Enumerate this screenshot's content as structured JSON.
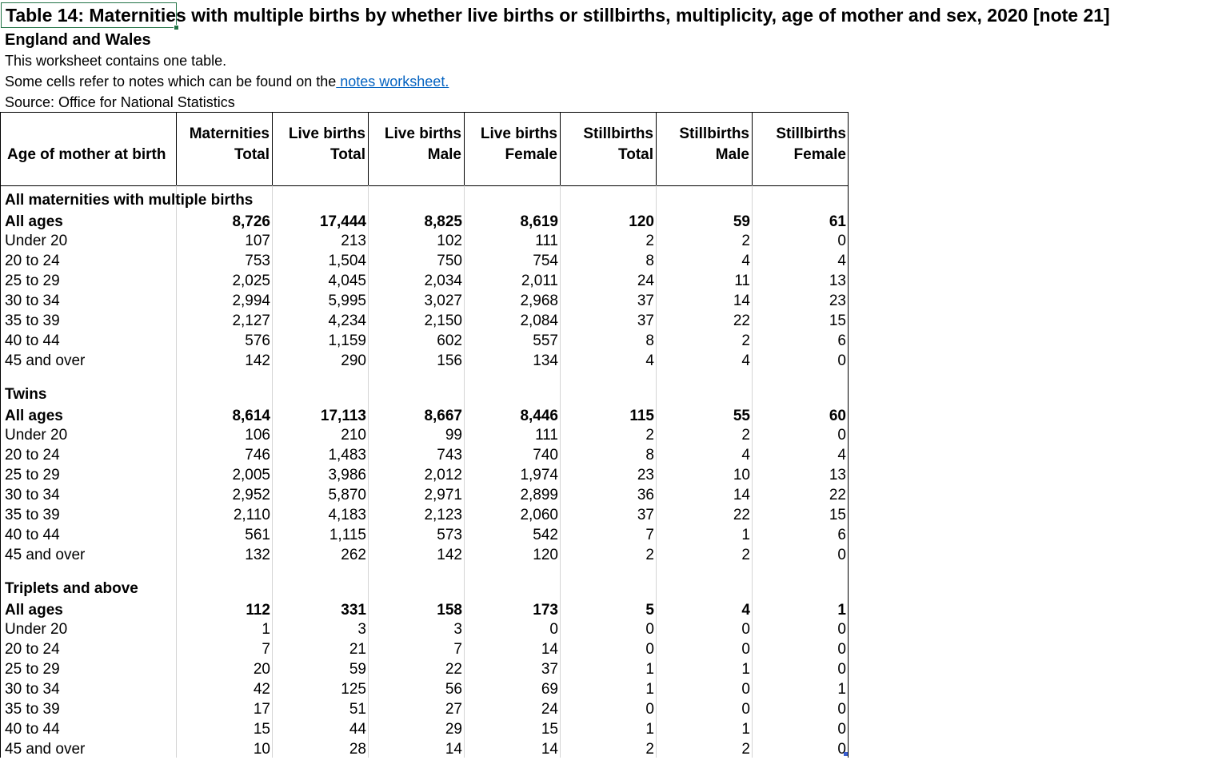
{
  "title": "Table 14: Maternities with multiple births by whether live births or stillbirths, multiplicity, age of mother and sex, 2020 [note 21]",
  "subtitle": "England and Wales",
  "info": {
    "line1": "This worksheet contains one table.",
    "line2_prefix": "Some cells refer to notes which can be found on the",
    "line2_link": " notes worksheet.",
    "line3": "Source: Office for National Statistics"
  },
  "columns": [
    {
      "line1": "",
      "line2": "Age of mother at birth"
    },
    {
      "line1": "Maternities",
      "line2": "Total"
    },
    {
      "line1": "Live births",
      "line2": "Total"
    },
    {
      "line1": "Live births",
      "line2": "Male"
    },
    {
      "line1": "Live births",
      "line2": "Female"
    },
    {
      "line1": "Stillbirths",
      "line2": "Total"
    },
    {
      "line1": "Stillbirths",
      "line2": "Male"
    },
    {
      "line1": "Stillbirths",
      "line2": "Female"
    }
  ],
  "sections": [
    {
      "title": "All maternities with multiple births",
      "rows": [
        {
          "age": "All ages",
          "bold": true,
          "values": [
            "8,726",
            "17,444",
            "8,825",
            "8,619",
            "120",
            "59",
            "61"
          ]
        },
        {
          "age": "Under 20",
          "values": [
            "107",
            "213",
            "102",
            "111",
            "2",
            "2",
            "0"
          ]
        },
        {
          "age": "20 to 24",
          "values": [
            "753",
            "1,504",
            "750",
            "754",
            "8",
            "4",
            "4"
          ]
        },
        {
          "age": "25 to 29",
          "values": [
            "2,025",
            "4,045",
            "2,034",
            "2,011",
            "24",
            "11",
            "13"
          ]
        },
        {
          "age": "30 to 34",
          "values": [
            "2,994",
            "5,995",
            "3,027",
            "2,968",
            "37",
            "14",
            "23"
          ]
        },
        {
          "age": "35 to 39",
          "values": [
            "2,127",
            "4,234",
            "2,150",
            "2,084",
            "37",
            "22",
            "15"
          ]
        },
        {
          "age": "40 to 44",
          "values": [
            "576",
            "1,159",
            "602",
            "557",
            "8",
            "2",
            "6"
          ]
        },
        {
          "age": "45 and over",
          "values": [
            "142",
            "290",
            "156",
            "134",
            "4",
            "4",
            "0"
          ]
        }
      ]
    },
    {
      "title": "Twins",
      "rows": [
        {
          "age": "All ages",
          "bold": true,
          "values": [
            "8,614",
            "17,113",
            "8,667",
            "8,446",
            "115",
            "55",
            "60"
          ]
        },
        {
          "age": "Under 20",
          "values": [
            "106",
            "210",
            "99",
            "111",
            "2",
            "2",
            "0"
          ]
        },
        {
          "age": "20 to 24",
          "values": [
            "746",
            "1,483",
            "743",
            "740",
            "8",
            "4",
            "4"
          ]
        },
        {
          "age": "25 to 29",
          "values": [
            "2,005",
            "3,986",
            "2,012",
            "1,974",
            "23",
            "10",
            "13"
          ]
        },
        {
          "age": "30 to 34",
          "values": [
            "2,952",
            "5,870",
            "2,971",
            "2,899",
            "36",
            "14",
            "22"
          ]
        },
        {
          "age": "35 to 39",
          "values": [
            "2,110",
            "4,183",
            "2,123",
            "2,060",
            "37",
            "22",
            "15"
          ]
        },
        {
          "age": "40 to 44",
          "values": [
            "561",
            "1,115",
            "573",
            "542",
            "7",
            "1",
            "6"
          ]
        },
        {
          "age": "45 and over",
          "values": [
            "132",
            "262",
            "142",
            "120",
            "2",
            "2",
            "0"
          ]
        }
      ]
    },
    {
      "title": "Triplets and above",
      "rows": [
        {
          "age": "All ages",
          "bold": true,
          "values": [
            "112",
            "331",
            "158",
            "173",
            "5",
            "4",
            "1"
          ]
        },
        {
          "age": "Under 20",
          "values": [
            "1",
            "3",
            "3",
            "0",
            "0",
            "0",
            "0"
          ]
        },
        {
          "age": "20 to 24",
          "values": [
            "7",
            "21",
            "7",
            "14",
            "0",
            "0",
            "0"
          ]
        },
        {
          "age": "25 to 29",
          "values": [
            "20",
            "59",
            "22",
            "37",
            "1",
            "1",
            "0"
          ]
        },
        {
          "age": "30 to 34",
          "values": [
            "42",
            "125",
            "56",
            "69",
            "1",
            "0",
            "1"
          ]
        },
        {
          "age": "35 to 39",
          "values": [
            "17",
            "51",
            "27",
            "24",
            "0",
            "0",
            "0"
          ]
        },
        {
          "age": "40 to 44",
          "values": [
            "15",
            "44",
            "29",
            "15",
            "1",
            "1",
            "0"
          ]
        },
        {
          "age": "45 and over",
          "values": [
            "10",
            "28",
            "14",
            "14",
            "2",
            "2",
            "0"
          ]
        }
      ]
    }
  ],
  "colors": {
    "link": "#0563c1",
    "active_cell_border": "#217346"
  }
}
